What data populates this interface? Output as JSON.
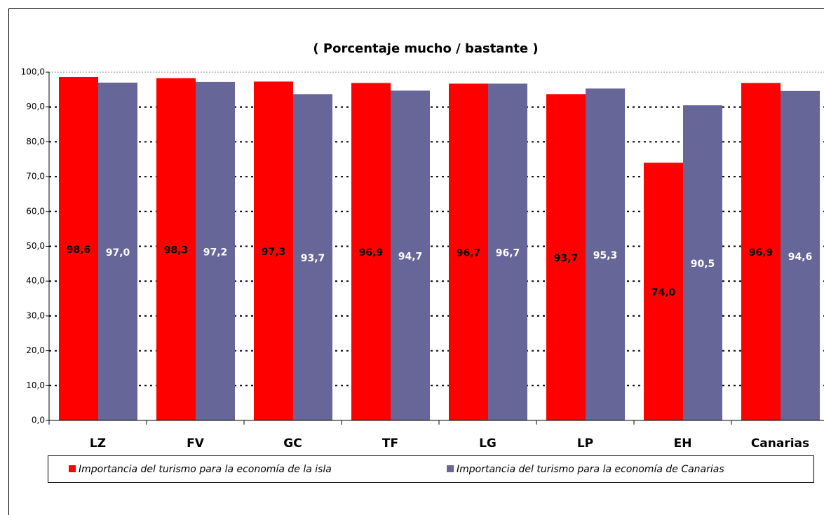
{
  "chart_data": {
    "type": "bar",
    "title": "( Porcentaje mucho / bastante )",
    "categories": [
      "LZ",
      "FV",
      "GC",
      "TF",
      "LG",
      "LP",
      "EH",
      "Canarias"
    ],
    "series": [
      {
        "name": "Importancia del turismo para la economía de la isla",
        "color": "#ff0000",
        "values": [
          98.6,
          98.3,
          97.3,
          96.9,
          96.7,
          93.7,
          74.0,
          96.9
        ],
        "value_labels": [
          "98,6",
          "98,3",
          "97,3",
          "96,9",
          "96,7",
          "93,7",
          "74,0",
          "96,9"
        ]
      },
      {
        "name": "Importancia del turismo para la economía de Canarias",
        "color": "#666699",
        "values": [
          97.0,
          97.2,
          93.7,
          94.7,
          96.7,
          95.3,
          90.5,
          94.6
        ],
        "value_labels": [
          "97,0",
          "97,2",
          "93,7",
          "94,7",
          "96,7",
          "95,3",
          "90,5",
          "94,6"
        ]
      }
    ],
    "ylim": [
      0,
      100
    ],
    "yticks": [
      {
        "value": 0,
        "label": "0,0"
      },
      {
        "value": 10,
        "label": "10,0"
      },
      {
        "value": 20,
        "label": "20,0"
      },
      {
        "value": 30,
        "label": "30,0"
      },
      {
        "value": 40,
        "label": "40,0"
      },
      {
        "value": 50,
        "label": "50,0"
      },
      {
        "value": 60,
        "label": "60,0"
      },
      {
        "value": 70,
        "label": "70,0"
      },
      {
        "value": 80,
        "label": "80,0"
      },
      {
        "value": 90,
        "label": "90,0"
      },
      {
        "value": 100,
        "label": "100,0"
      }
    ],
    "grid": true,
    "legend": "bottom"
  }
}
